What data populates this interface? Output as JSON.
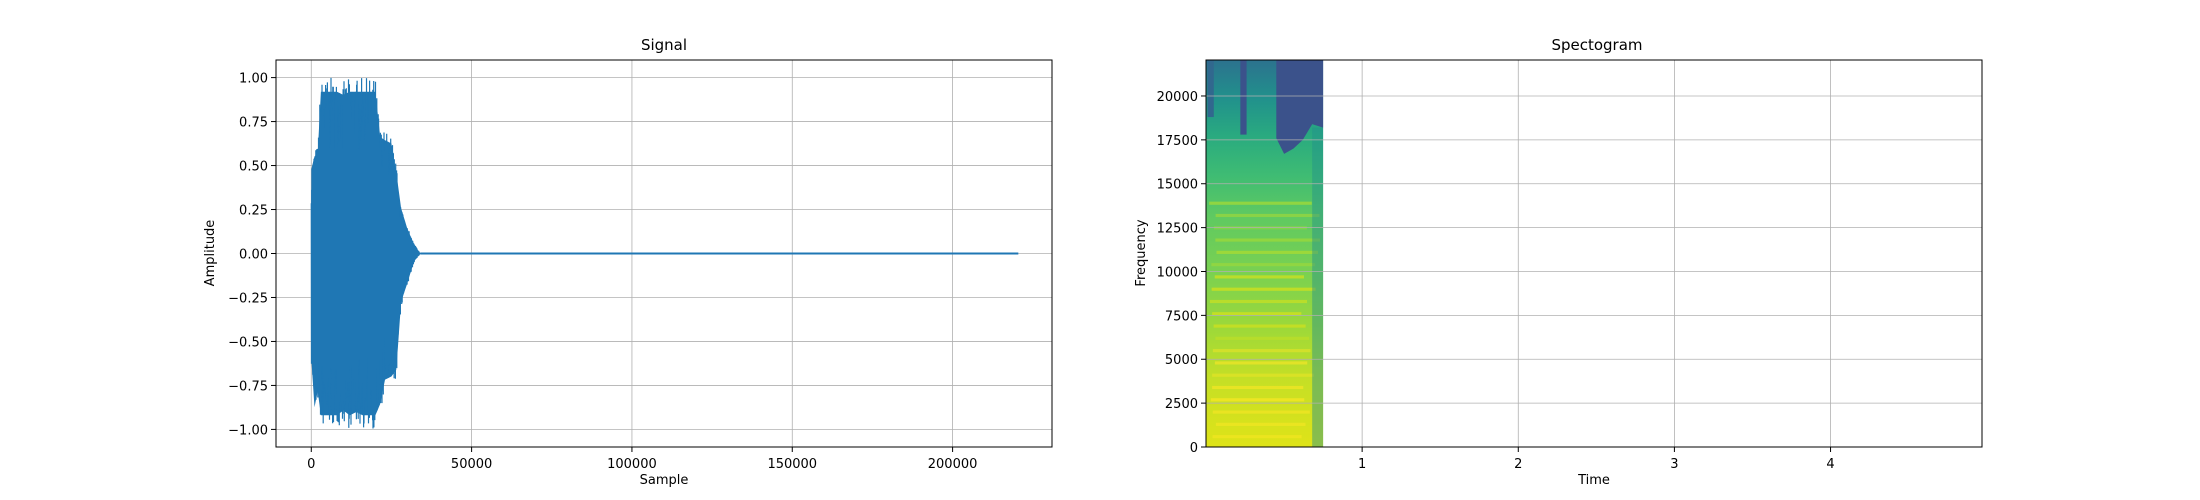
{
  "colors": {
    "signal": "#1f77b4",
    "grid": "#b0b0b0",
    "axes": "#000000"
  },
  "chart_data": [
    {
      "type": "line",
      "title": "Signal",
      "xlabel": "Sample",
      "ylabel": "Amplitude",
      "xlim": [
        -11000,
        231000
      ],
      "ylim": [
        -1.1,
        1.1
      ],
      "xticks": [
        0,
        50000,
        100000,
        150000,
        200000
      ],
      "xticklabels": [
        "0",
        "50000",
        "100000",
        "150000",
        "200000"
      ],
      "yticks": [
        -1.0,
        -0.75,
        -0.5,
        -0.25,
        0.0,
        0.25,
        0.5,
        0.75,
        1.0
      ],
      "yticklabels": [
        "−1.00",
        "−0.75",
        "−0.50",
        "−0.25",
        "0.00",
        "0.25",
        "0.50",
        "0.75",
        "1.00"
      ],
      "grid": true,
      "series": [
        {
          "x": [
            0,
            1000,
            2000,
            3000,
            4500,
            6000,
            8000,
            10000,
            12000,
            14000,
            16000,
            18000,
            20000,
            21500,
            23000,
            25000,
            26500,
            28000,
            30000,
            32000,
            34000,
            220500
          ],
          "upper": [
            0.52,
            0.6,
            0.62,
            1.0,
            1.0,
            1.0,
            1.0,
            0.98,
            1.0,
            1.0,
            1.0,
            1.0,
            1.0,
            0.72,
            0.7,
            0.68,
            0.5,
            0.28,
            0.15,
            0.06,
            0.0,
            0.0
          ],
          "lower": [
            -0.65,
            -0.95,
            -0.85,
            -1.0,
            -1.0,
            -1.0,
            -1.0,
            -0.97,
            -1.0,
            -0.98,
            -1.0,
            -1.0,
            -1.0,
            -0.93,
            -0.78,
            -0.76,
            -0.72,
            -0.3,
            -0.18,
            -0.05,
            0.0,
            0.0
          ]
        }
      ]
    },
    {
      "type": "heatmap",
      "title": "Spectogram",
      "xlabel": "Time",
      "ylabel": "Frequency",
      "xlim": [
        0,
        4.97
      ],
      "ylim": [
        0,
        22050
      ],
      "xticks": [
        1,
        2,
        3,
        4
      ],
      "xticklabels": [
        "1",
        "2",
        "3",
        "4"
      ],
      "yticks": [
        0,
        2500,
        5000,
        7500,
        10000,
        12500,
        15000,
        17500,
        20000
      ],
      "yticklabels": [
        "0",
        "2500",
        "5000",
        "7500",
        "10000",
        "12500",
        "15000",
        "17500",
        "20000"
      ],
      "grid": true,
      "colormap": "viridis",
      "data_extent_time": [
        0,
        0.75
      ],
      "note_levels": "energy mostly yellow-green below 12500 Hz, dark blue upper region after 0.45 s"
    }
  ]
}
